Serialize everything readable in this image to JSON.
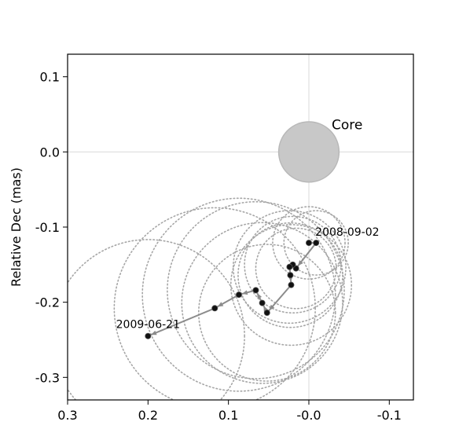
{
  "chart_data": {
    "type": "scatter",
    "title": "",
    "xlabel": "",
    "ylabel": "Relative Dec (mas)",
    "xlim": [
      0.3,
      -0.13
    ],
    "ylim": [
      -0.33,
      0.13
    ],
    "x_ticks": [
      0.3,
      0.2,
      0.1,
      0.0,
      -0.1
    ],
    "x_tick_labels": [
      "0.3",
      "0.2",
      "0.1",
      "-0.0",
      "-0.1"
    ],
    "y_ticks": [
      0.1,
      0.0,
      -0.1,
      -0.2,
      -0.3
    ],
    "y_tick_labels": [
      "0.1",
      "0.0",
      "-0.1",
      "-0.2",
      "-0.3"
    ],
    "grid": "crosshair at origin",
    "core": {
      "label": "Core",
      "x": 0.0,
      "y": 0.0,
      "diameter": 0.075
    },
    "series": [
      {
        "points": [
          {
            "x": 0.0,
            "y": -0.121,
            "size": 0.09
          },
          {
            "x": -0.009,
            "y": -0.121,
            "size": 0.08
          },
          {
            "x": 0.016,
            "y": -0.155,
            "size": 0.1
          },
          {
            "x": 0.02,
            "y": -0.15,
            "size": 0.12
          },
          {
            "x": 0.024,
            "y": -0.153,
            "size": 0.14
          },
          {
            "x": 0.023,
            "y": -0.164,
            "size": 0.13
          },
          {
            "x": 0.022,
            "y": -0.177,
            "size": 0.15
          },
          {
            "x": 0.052,
            "y": -0.214,
            "size": 0.17
          },
          {
            "x": 0.058,
            "y": -0.201,
            "size": 0.2
          },
          {
            "x": 0.066,
            "y": -0.184,
            "size": 0.22
          },
          {
            "x": 0.087,
            "y": -0.19,
            "size": 0.24
          },
          {
            "x": 0.117,
            "y": -0.208,
            "size": 0.25
          },
          {
            "x": 0.2,
            "y": -0.245,
            "size": 0.24
          }
        ]
      }
    ],
    "annotations": [
      {
        "text": "2008-09-02",
        "x": -0.009,
        "y": -0.121
      },
      {
        "text": "2009-06-21",
        "x": 0.2,
        "y": -0.245
      }
    ]
  }
}
